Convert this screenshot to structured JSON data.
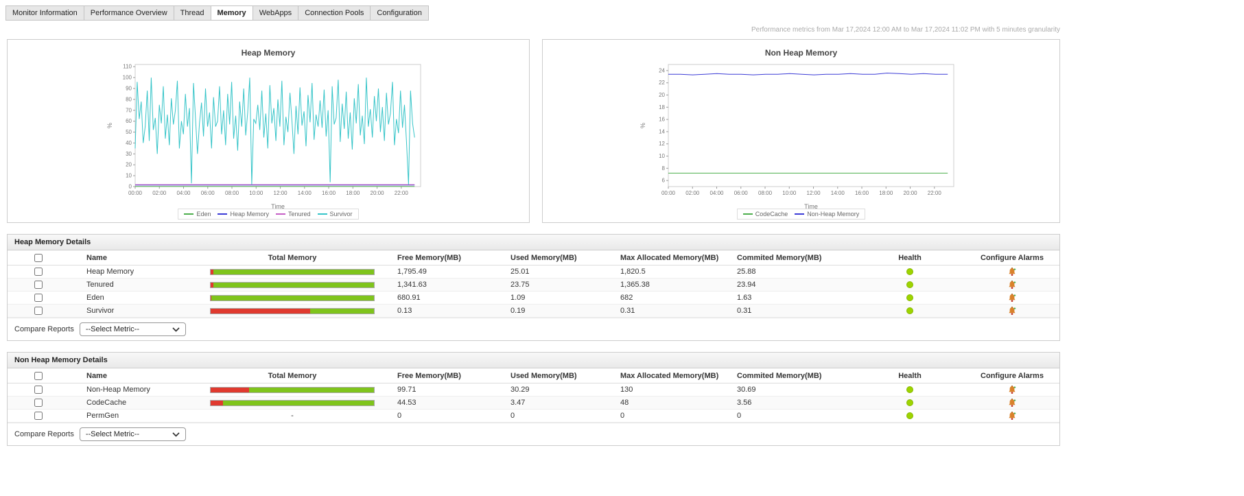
{
  "tabs": [
    "Monitor Information",
    "Performance Overview",
    "Thread",
    "Memory",
    "WebApps",
    "Connection Pools",
    "Configuration"
  ],
  "selected_tab": "Memory",
  "metrics_note": "Performance metrics from Mar 17,2024 12:00 AM to Mar 17,2024 11:02 PM with 5 minutes granularity",
  "colors": {
    "bar_green": "#7fc41c",
    "bar_red": "#e03a2f",
    "health_green": "#9ed400"
  },
  "chart_data": [
    {
      "type": "line",
      "title": "Heap Memory",
      "xlabel": "Time",
      "ylabel": "%",
      "ylim": [
        0,
        112
      ],
      "yticks": [
        0,
        10,
        20,
        30,
        40,
        50,
        60,
        70,
        80,
        90,
        100,
        110
      ],
      "xlim": [
        0,
        23.6
      ],
      "data_x_max": 23.1,
      "xticks": [
        0,
        2,
        4,
        6,
        8,
        10,
        12,
        14,
        16,
        18,
        20,
        22
      ],
      "xtick_labels": [
        "00:00",
        "02:00",
        "04:00",
        "06:00",
        "08:00",
        "10:00",
        "12:00",
        "14:00",
        "16:00",
        "18:00",
        "20:00",
        "22:00"
      ],
      "grid": false,
      "legend_position": "bottom",
      "series": [
        {
          "name": "Eden",
          "color": "#4cae4c",
          "values": [
            0.2,
            0.2
          ]
        },
        {
          "name": "Heap Memory",
          "color": "#3b3bd6",
          "values": [
            1.4,
            1.4
          ]
        },
        {
          "name": "Tenured",
          "color": "#c65ec6",
          "values": [
            1.8,
            1.8
          ]
        },
        {
          "name": "Survivor",
          "color": "#35c4c8",
          "values": [
            35,
            96,
            62,
            78,
            40,
            55,
            88,
            42,
            100,
            52,
            63,
            30,
            75,
            58,
            92,
            44,
            66,
            38,
            81,
            57,
            70,
            97,
            35,
            60,
            48,
            85,
            55,
            72,
            3,
            95,
            63,
            30,
            58,
            77,
            46,
            90,
            55,
            68,
            35,
            82,
            55,
            60,
            92,
            48,
            70,
            38,
            85,
            57,
            96,
            44,
            65,
            33,
            78,
            55,
            90,
            47,
            68,
            100,
            2,
            62,
            58,
            75,
            52,
            88,
            45,
            67,
            35,
            93,
            58,
            72,
            42,
            80,
            55,
            97,
            38,
            64,
            50,
            86,
            60,
            30,
            74,
            48,
            91,
            56,
            69,
            37,
            84,
            59,
            95,
            43,
            66,
            55,
            79,
            54,
            89,
            46,
            70,
            4,
            92,
            57,
            63,
            98,
            41,
            76,
            53,
            87,
            44,
            68,
            34,
            81,
            58,
            94,
            47,
            65,
            39,
            100,
            55,
            71,
            45,
            83,
            60,
            90,
            50,
            73,
            42,
            86,
            57,
            67,
            96,
            38,
            62,
            49,
            88,
            54,
            75,
            40,
            2,
            88,
            58,
            45
          ]
        }
      ]
    },
    {
      "type": "line",
      "title": "Non Heap Memory",
      "xlabel": "Time",
      "ylabel": "%",
      "ylim": [
        5,
        25
      ],
      "yticks": [
        6,
        8,
        10,
        12,
        14,
        16,
        18,
        20,
        22,
        24
      ],
      "xlim": [
        0,
        23.6
      ],
      "data_x_max": 23.1,
      "xticks": [
        0,
        2,
        4,
        6,
        8,
        10,
        12,
        14,
        16,
        18,
        20,
        22
      ],
      "xtick_labels": [
        "00:00",
        "02:00",
        "04:00",
        "06:00",
        "08:00",
        "10:00",
        "12:00",
        "14:00",
        "16:00",
        "18:00",
        "20:00",
        "22:00"
      ],
      "grid": false,
      "legend_position": "bottom",
      "series": [
        {
          "name": "CodeCache",
          "color": "#4cae4c",
          "values": [
            7.2,
            7.2,
            7.2,
            7.2
          ]
        },
        {
          "name": "Non-Heap Memory",
          "color": "#3b3bd6",
          "values": [
            23.4,
            23.4,
            23.3,
            23.4,
            23.5,
            23.4,
            23.4,
            23.3,
            23.4,
            23.4,
            23.5,
            23.4,
            23.3,
            23.4,
            23.4,
            23.5,
            23.4,
            23.4,
            23.6,
            23.5,
            23.4,
            23.5,
            23.4,
            23.4
          ]
        }
      ]
    }
  ],
  "heap_table": {
    "title": "Heap Memory Details",
    "columns": [
      "Name",
      "Total Memory",
      "Free Memory(MB)",
      "Used Memory(MB)",
      "Max Allocated Memory(MB)",
      "Commited Memory(MB)",
      "Health",
      "Configure Alarms"
    ],
    "rows": [
      {
        "name": "Heap Memory",
        "used_pct": 1.5,
        "free": "1,795.49",
        "used": "25.01",
        "max": "1,820.5",
        "committed": "25.88",
        "health": "green"
      },
      {
        "name": "Tenured",
        "used_pct": 1.8,
        "free": "1,341.63",
        "used": "23.75",
        "max": "1,365.38",
        "committed": "23.94",
        "health": "green"
      },
      {
        "name": "Eden",
        "used_pct": 0.3,
        "free": "680.91",
        "used": "1.09",
        "max": "682",
        "committed": "1.63",
        "health": "green"
      },
      {
        "name": "Survivor",
        "used_pct": 61,
        "free": "0.13",
        "used": "0.19",
        "max": "0.31",
        "committed": "0.31",
        "health": "green"
      }
    ],
    "compare_label": "Compare Reports",
    "select_value": "--Select Metric--"
  },
  "nonheap_table": {
    "title": "Non Heap Memory Details",
    "columns": [
      "Name",
      "Total Memory",
      "Free Memory(MB)",
      "Used Memory(MB)",
      "Max Allocated Memory(MB)",
      "Commited Memory(MB)",
      "Health",
      "Configure Alarms"
    ],
    "rows": [
      {
        "name": "Non-Heap Memory",
        "used_pct": 23.5,
        "free": "99.71",
        "used": "30.29",
        "max": "130",
        "committed": "30.69",
        "health": "green"
      },
      {
        "name": "CodeCache",
        "used_pct": 7.5,
        "free": "44.53",
        "used": "3.47",
        "max": "48",
        "committed": "3.56",
        "health": "green"
      },
      {
        "name": "PermGen",
        "used_pct": null,
        "free": "0",
        "used": "0",
        "max": "0",
        "committed": "0",
        "health": "green"
      }
    ],
    "compare_label": "Compare Reports",
    "select_value": "--Select Metric--"
  }
}
